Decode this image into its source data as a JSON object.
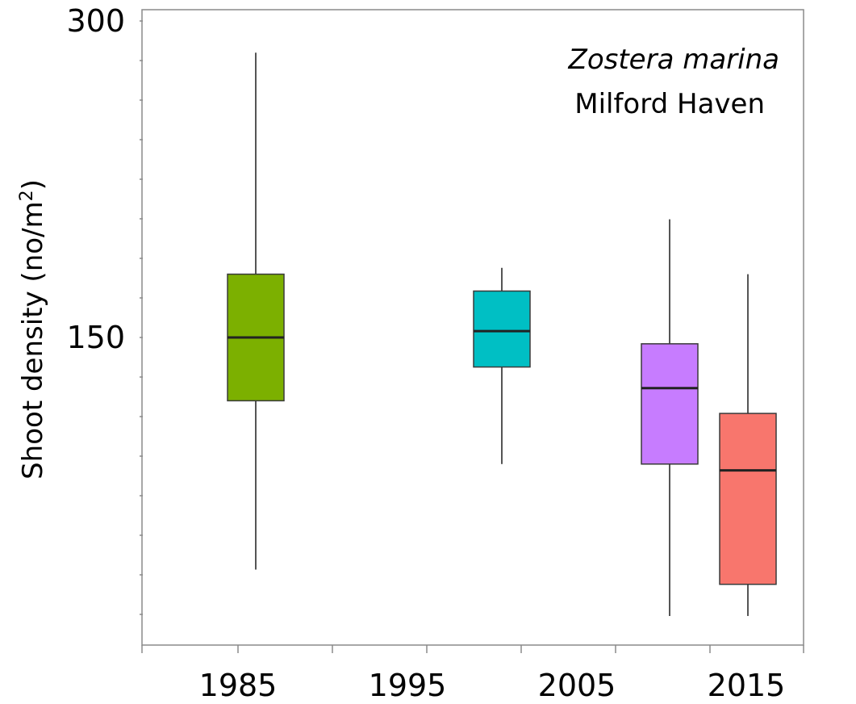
{
  "chart_data": {
    "type": "box",
    "xlabel": "",
    "ylabel": "Shoot density (no/m",
    "ylabel_sup": "2",
    "ylabel_close": ")",
    "ylim": [
      0,
      300
    ],
    "yticks": [
      150,
      300
    ],
    "xlim": [
      1985,
      2015
    ],
    "xticks": [
      1985,
      1995,
      2005,
      2015
    ],
    "grid": false,
    "annotation": {
      "species": "Zostera marina",
      "site": "Milford Haven"
    },
    "boxes": [
      {
        "x": 1985,
        "color": "#7cb000",
        "whisker_low": 40,
        "q1": 120,
        "median": 150,
        "q3": 180,
        "whisker_high": 285
      },
      {
        "x": 1995,
        "color": "#00bfc4",
        "whisker_low": 90,
        "q1": 136,
        "median": 153,
        "q3": 172,
        "whisker_high": 183
      },
      {
        "x": 2005,
        "color": "#c77cff",
        "whisker_low": 18,
        "q1": 90,
        "median": 126,
        "q3": 147,
        "whisker_high": 206
      },
      {
        "x": 2015,
        "color": "#f8766d",
        "whisker_low": 18,
        "q1": 33,
        "median": 87,
        "q3": 114,
        "whisker_high": 180
      }
    ]
  }
}
